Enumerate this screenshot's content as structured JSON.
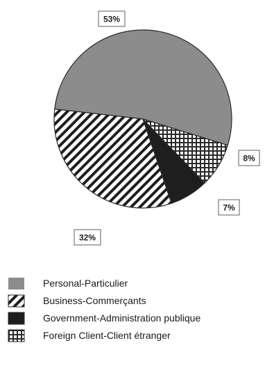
{
  "chart_data": {
    "type": "pie",
    "title": "",
    "categories": [
      "Personal-Particulier",
      "Business-Commerçants",
      "Government-Administration publique",
      "Foreign Client-Client étranger"
    ],
    "values": [
      53,
      32,
      7,
      8
    ],
    "data_labels": [
      "53%",
      "32%",
      "7%",
      "8%"
    ],
    "fills": [
      "solid-gray",
      "diagonal-hatch",
      "solid-black",
      "grid-hatch"
    ],
    "legend_position": "bottom-left"
  },
  "colors": {
    "personal": "#8c8c8c",
    "dark": "#1e1e1e",
    "line": "#2a2a2a",
    "label_border": "#7a7a7a",
    "background": "#ffffff"
  }
}
